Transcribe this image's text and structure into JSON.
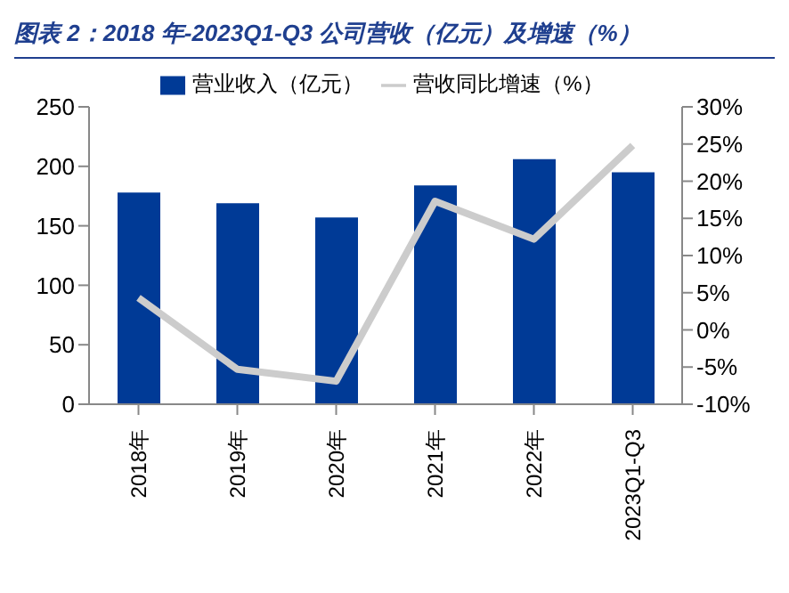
{
  "chart_data": {
    "type": "bar",
    "title": "图表 2：2018 年-2023Q1-Q3 公司营收（亿元）及增速（%）",
    "categories": [
      "2018年",
      "2019年",
      "2020年",
      "2021年",
      "2022年",
      "2023Q1-Q3"
    ],
    "series": [
      {
        "name": "营业收入（亿元）",
        "color": "#003a96",
        "values": [
          178,
          169,
          157,
          184,
          206,
          195
        ]
      },
      {
        "name": "营收同比增速（%）",
        "type": "line",
        "axis": "y2",
        "color": "#cccccc",
        "values": [
          4.3,
          -5.3,
          -6.9,
          17.3,
          12.2,
          24.8
        ]
      }
    ],
    "ylim": [
      0,
      250
    ],
    "yticks": [
      0,
      50,
      100,
      150,
      200,
      250
    ],
    "y2lim": [
      -10,
      30
    ],
    "y2ticks": [
      {
        "value": -10,
        "label": "-10%"
      },
      {
        "value": -5,
        "label": "-5%"
      },
      {
        "value": 0,
        "label": "0%"
      },
      {
        "value": 5,
        "label": "5%"
      },
      {
        "value": 10,
        "label": "10%"
      },
      {
        "value": 15,
        "label": "15%"
      },
      {
        "value": 20,
        "label": "20%"
      },
      {
        "value": 25,
        "label": "25%"
      },
      {
        "value": 30,
        "label": "30%"
      }
    ],
    "grid": false,
    "legend": "top",
    "marker": "none"
  }
}
